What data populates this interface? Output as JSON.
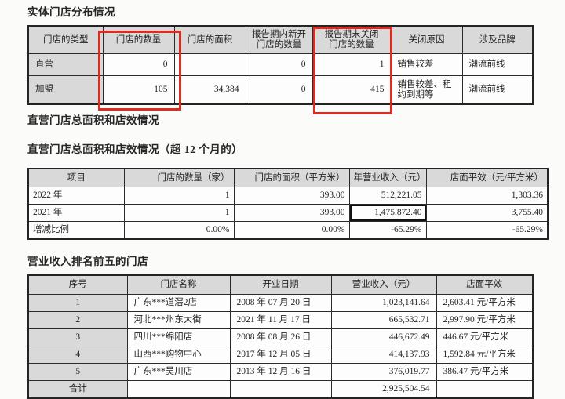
{
  "colors": {
    "annotation_red": "#dc2b20",
    "header_gray": "#d9d9d9",
    "text": "#242424",
    "page_bg": "#fbfbfa"
  },
  "annotations": {
    "box1_target": "store-count-column",
    "box2_target": "closed-at-period-end-column"
  },
  "sections": {
    "distribution": {
      "title": "实体门店分布情况",
      "table": {
        "headers": [
          "门店的类型",
          "门店的数量",
          "门店的面积",
          "报告期内新开\n门店的数量",
          "报告期末关闭\n门店的数量",
          "关闭原因",
          "涉及品牌"
        ],
        "rows": [
          [
            "直营",
            "0",
            "",
            "0",
            "1",
            "销售较差",
            "潮流前线"
          ],
          [
            "加盟",
            "105",
            "34,384",
            "0",
            "415",
            "销售较差、租约到期等",
            "潮流前线"
          ]
        ]
      }
    },
    "direct_stores": {
      "title": "直营门店总面积和店效情况",
      "subtitle": "直营门店总面积和店效情况（超 12 个月的）",
      "table": {
        "headers": [
          "项目",
          "门店的数量（家）",
          "门店的面积（平方米）",
          "年营业收入（元）",
          "店面平效（元/平方米）"
        ],
        "rows": [
          [
            "2022 年",
            "1",
            "393.00",
            "512,221.05",
            "1,303.36"
          ],
          [
            "2021 年",
            "1",
            "393.00",
            "1,475,872.40",
            "3,755.40"
          ],
          [
            "增减比例",
            "0.00%",
            "0.00%",
            "-65.29%",
            "-65.29%"
          ]
        ],
        "highlight_cell": {
          "row": 1,
          "col": 3
        }
      }
    },
    "top_five": {
      "title": "营业收入排名前五的门店",
      "table": {
        "headers": [
          "序号",
          "门店名称",
          "开业日期",
          "营业收入（元）",
          "店面平效"
        ],
        "rows": [
          [
            "1",
            "广东***道滘2店",
            "2008 年 07 月 20 日",
            "1,023,141.64",
            "2,603.41 元/平方米"
          ],
          [
            "2",
            "河北***州东大街",
            "2021 年 11 月 17 日",
            "665,532.71",
            "2,997.90 元/平方米"
          ],
          [
            "3",
            "四川***绵阳店",
            "2008 年 08 月 26 日",
            "446,672.49",
            "446.67 元/平方米"
          ],
          [
            "4",
            "山西***购物中心",
            "2017 年 12 月 05 日",
            "414,137.93",
            "1,592.84 元/平方米"
          ],
          [
            "5",
            "广东***吴川店",
            "2013 年 12 月 16 日",
            "376,019.77",
            "386.47 元/平方米"
          ],
          [
            "合计",
            "",
            "",
            "2,925,504.54",
            ""
          ]
        ]
      }
    }
  }
}
